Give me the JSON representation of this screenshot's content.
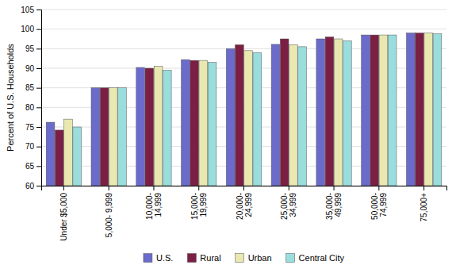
{
  "chart_data": {
    "type": "bar",
    "categories": [
      "Under $5,000",
      "5,000- 9,999",
      "10,000-\n14,999",
      "15,000-\n19,999",
      "20,000-\n24,999",
      "25,000-\n34,999",
      "35,000-\n49,999",
      "50,000-\n74,999",
      "75,000+"
    ],
    "series": [
      {
        "name": "U.S.",
        "color": "#6b6bcc",
        "values": [
          76.2,
          85.0,
          90.2,
          92.2,
          95.0,
          96.1,
          97.5,
          98.5,
          99.0
        ]
      },
      {
        "name": "Rural",
        "color": "#7b1f45",
        "values": [
          74.2,
          85.0,
          90.0,
          92.0,
          96.0,
          97.5,
          98.0,
          98.5,
          99.0
        ]
      },
      {
        "name": "Urban",
        "color": "#e8e8b0",
        "values": [
          77.0,
          85.0,
          90.5,
          92.0,
          94.5,
          96.0,
          97.5,
          98.5,
          99.0
        ]
      },
      {
        "name": "Central City",
        "color": "#99dddd",
        "values": [
          75.0,
          85.0,
          89.5,
          91.5,
          94.0,
          95.5,
          97.0,
          98.5,
          98.8
        ]
      }
    ],
    "y_label": "Percent of U.S. Households",
    "ylim": [
      60.0,
      105.0
    ],
    "yticks": [
      60.0,
      65.0,
      70.0,
      75.0,
      80.0,
      85.0,
      90.0,
      95.0,
      100.0,
      105.0
    ],
    "grid": true,
    "legend": "bottom"
  }
}
